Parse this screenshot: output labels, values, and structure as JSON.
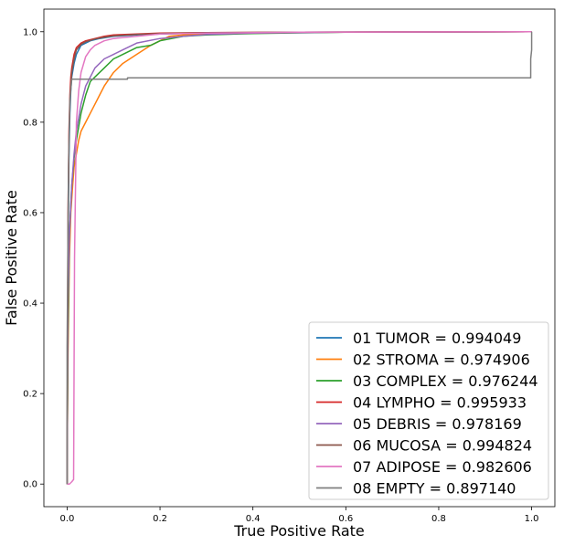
{
  "chart_data": {
    "type": "line",
    "title": "",
    "xlabel": "True Positive Rate",
    "ylabel": "False Positive Rate",
    "xlim": [
      -0.05,
      1.05
    ],
    "ylim": [
      -0.05,
      1.05
    ],
    "xticks": [
      "0.0",
      "0.2",
      "0.4",
      "0.6",
      "0.8",
      "1.0"
    ],
    "yticks": [
      "0.0",
      "0.2",
      "0.4",
      "0.6",
      "0.8",
      "1.0"
    ],
    "grid": false,
    "legend_position": "lower-right",
    "series": [
      {
        "name": "01 TUMOR = 0.994049",
        "color": "#1f77b4",
        "x": [
          0,
          0,
          0.002,
          0.004,
          0.006,
          0.008,
          0.01,
          0.015,
          0.02,
          0.025,
          0.03,
          0.04,
          0.05,
          0.07,
          0.1,
          0.15,
          0.2,
          0.3,
          0.5,
          1.0
        ],
        "y": [
          0,
          0.06,
          0.5,
          0.72,
          0.82,
          0.87,
          0.9,
          0.93,
          0.95,
          0.96,
          0.97,
          0.975,
          0.98,
          0.985,
          0.99,
          0.993,
          0.995,
          0.997,
          0.999,
          1.0
        ]
      },
      {
        "name": "02 STROMA = 0.974906",
        "color": "#ff7f0e",
        "x": [
          0,
          0,
          0.002,
          0.005,
          0.008,
          0.012,
          0.015,
          0.02,
          0.025,
          0.03,
          0.04,
          0.05,
          0.06,
          0.07,
          0.08,
          0.1,
          0.12,
          0.15,
          0.18,
          0.2,
          0.22,
          0.25,
          0.3,
          0.4,
          0.6,
          1.0
        ],
        "y": [
          0,
          0.04,
          0.3,
          0.5,
          0.6,
          0.66,
          0.7,
          0.73,
          0.76,
          0.78,
          0.8,
          0.82,
          0.84,
          0.86,
          0.88,
          0.91,
          0.93,
          0.95,
          0.97,
          0.98,
          0.99,
          0.993,
          0.996,
          0.998,
          0.999,
          1.0
        ]
      },
      {
        "name": "03 COMPLEX = 0.976244",
        "color": "#2ca02c",
        "x": [
          0,
          0,
          0.002,
          0.005,
          0.01,
          0.015,
          0.02,
          0.03,
          0.04,
          0.05,
          0.06,
          0.08,
          0.1,
          0.12,
          0.15,
          0.18,
          0.2,
          0.25,
          0.3,
          0.4,
          0.6,
          1.0
        ],
        "y": [
          0,
          0.03,
          0.34,
          0.55,
          0.66,
          0.72,
          0.76,
          0.82,
          0.86,
          0.89,
          0.9,
          0.92,
          0.94,
          0.95,
          0.965,
          0.97,
          0.98,
          0.99,
          0.993,
          0.996,
          0.999,
          1.0
        ]
      },
      {
        "name": "04 LYMPHO = 0.995933",
        "color": "#d62728",
        "x": [
          0,
          0,
          0.002,
          0.004,
          0.006,
          0.008,
          0.01,
          0.015,
          0.02,
          0.03,
          0.04,
          0.06,
          0.08,
          0.1,
          0.15,
          0.2,
          0.3,
          0.5,
          1.0
        ],
        "y": [
          0,
          0.07,
          0.6,
          0.78,
          0.86,
          0.9,
          0.92,
          0.95,
          0.965,
          0.975,
          0.98,
          0.985,
          0.99,
          0.993,
          0.995,
          0.997,
          0.998,
          0.999,
          1.0
        ]
      },
      {
        "name": "05 DEBRIS = 0.978169",
        "color": "#9467bd",
        "x": [
          0,
          0,
          0.002,
          0.005,
          0.01,
          0.015,
          0.02,
          0.03,
          0.04,
          0.05,
          0.06,
          0.08,
          0.1,
          0.12,
          0.15,
          0.2,
          0.25,
          0.3,
          0.4,
          0.6,
          1.0
        ],
        "y": [
          0,
          0.03,
          0.4,
          0.55,
          0.66,
          0.73,
          0.78,
          0.84,
          0.88,
          0.9,
          0.92,
          0.94,
          0.95,
          0.96,
          0.975,
          0.985,
          0.99,
          0.994,
          0.997,
          0.999,
          1.0
        ]
      },
      {
        "name": "06 MUCOSA = 0.994824",
        "color": "#8c564b",
        "x": [
          0,
          0,
          0.002,
          0.004,
          0.006,
          0.008,
          0.01,
          0.015,
          0.02,
          0.03,
          0.04,
          0.06,
          0.08,
          0.1,
          0.15,
          0.2,
          0.3,
          0.5,
          1.0
        ],
        "y": [
          0,
          0.05,
          0.55,
          0.75,
          0.84,
          0.88,
          0.91,
          0.94,
          0.96,
          0.972,
          0.978,
          0.984,
          0.988,
          0.991,
          0.994,
          0.996,
          0.998,
          0.999,
          1.0
        ]
      },
      {
        "name": "07 ADIPOSE = 0.982606",
        "color": "#e377c2",
        "x": [
          0,
          0,
          0.005,
          0.01,
          0.014,
          0.016,
          0.02,
          0.025,
          0.03,
          0.04,
          0.05,
          0.06,
          0.08,
          0.1,
          0.15,
          0.2,
          0.3,
          0.5,
          1.0
        ],
        "y": [
          0,
          0.0,
          0.0,
          0.005,
          0.01,
          0.5,
          0.8,
          0.87,
          0.91,
          0.945,
          0.96,
          0.97,
          0.98,
          0.985,
          0.99,
          0.995,
          0.997,
          0.999,
          1.0
        ]
      },
      {
        "name": "08 EMPTY = 0.897140",
        "color": "#7f7f7f",
        "x": [
          0,
          0,
          0.003,
          0.006,
          0.01,
          0.13,
          0.13,
          0.998,
          0.998,
          1.0,
          1.0
        ],
        "y": [
          0,
          0.3,
          0.7,
          0.85,
          0.895,
          0.895,
          0.898,
          0.898,
          0.94,
          0.96,
          1.0
        ]
      }
    ]
  }
}
